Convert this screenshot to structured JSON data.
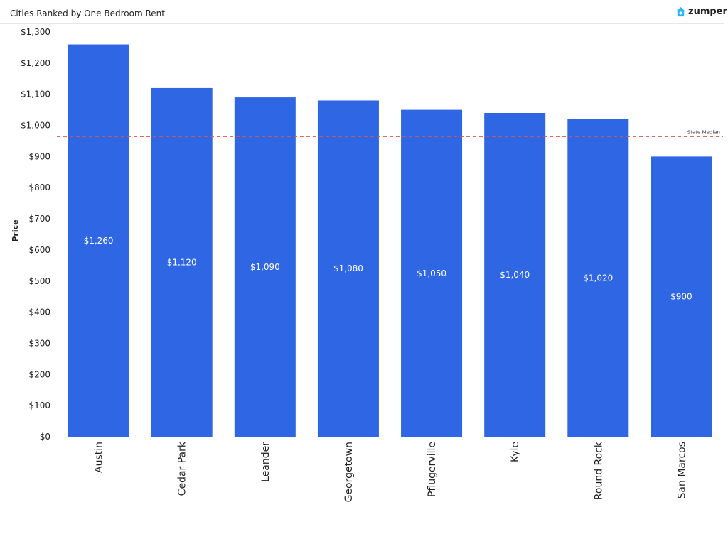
{
  "header": {
    "title": "Cities Ranked by One Bedroom Rent",
    "logo_text": "zumper"
  },
  "colors": {
    "bar": "#2f66e3",
    "median_line": "#d9534f",
    "logo_icon": "#29b6f6"
  },
  "chart_data": {
    "type": "bar",
    "title": "Cities Ranked by One Bedroom Rent",
    "xlabel": "",
    "ylabel": "Price",
    "ylim": [
      0,
      1300
    ],
    "yticks": [
      0,
      100,
      200,
      300,
      400,
      500,
      600,
      700,
      800,
      900,
      1000,
      1100,
      1200,
      1300
    ],
    "ytick_labels": [
      "$0",
      "$100",
      "$200",
      "$300",
      "$400",
      "$500",
      "$600",
      "$700",
      "$800",
      "$900",
      "$1,000",
      "$1,100",
      "$1,200",
      "$1,300"
    ],
    "categories": [
      "Austin",
      "Cedar Park",
      "Leander",
      "Georgetown",
      "Pflugerville",
      "Kyle",
      "Round Rock",
      "San Marcos"
    ],
    "values": [
      1260,
      1120,
      1090,
      1080,
      1050,
      1040,
      1020,
      900
    ],
    "value_labels": [
      "$1,260",
      "$1,120",
      "$1,090",
      "$1,080",
      "$1,050",
      "$1,040",
      "$1,020",
      "$900"
    ],
    "reference_line": {
      "label": "State Median",
      "value": 964
    },
    "grid": false,
    "legend": "none"
  }
}
